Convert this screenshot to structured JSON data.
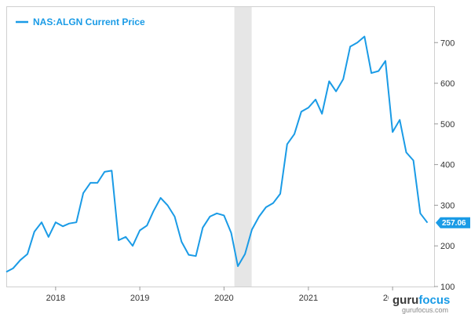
{
  "chart_data": {
    "type": "line",
    "title": "",
    "xlabel": "",
    "ylabel": "",
    "legend": {
      "label": "NAS:ALGN Current Price",
      "position": "top-left"
    },
    "current_price_label": "257.06",
    "grid": false,
    "x_tick_labels": [
      "2018",
      "2019",
      "2020",
      "2021",
      "2022"
    ],
    "y_tick_labels": [
      "100",
      "200",
      "300",
      "400",
      "500",
      "600",
      "700"
    ],
    "xlim": [
      "2017-06-01",
      "2022-06-30"
    ],
    "ylim": [
      100,
      770
    ],
    "shaded_region": {
      "start": "2020-02-15",
      "end": "2020-04-30"
    },
    "series": [
      {
        "name": "NAS:ALGN Current Price",
        "color": "#1a9be6",
        "points": [
          [
            "2017-06-01",
            136
          ],
          [
            "2017-07-01",
            145
          ],
          [
            "2017-08-01",
            165
          ],
          [
            "2017-09-01",
            180
          ],
          [
            "2017-10-01",
            235
          ],
          [
            "2017-11-01",
            258
          ],
          [
            "2017-12-01",
            222
          ],
          [
            "2018-01-01",
            258
          ],
          [
            "2018-02-01",
            248
          ],
          [
            "2018-03-01",
            255
          ],
          [
            "2018-04-01",
            258
          ],
          [
            "2018-05-01",
            330
          ],
          [
            "2018-06-01",
            355
          ],
          [
            "2018-07-01",
            355
          ],
          [
            "2018-08-01",
            382
          ],
          [
            "2018-09-01",
            385
          ],
          [
            "2018-10-01",
            214
          ],
          [
            "2018-11-01",
            222
          ],
          [
            "2018-12-01",
            200
          ],
          [
            "2019-01-01",
            238
          ],
          [
            "2019-02-01",
            250
          ],
          [
            "2019-03-01",
            285
          ],
          [
            "2019-04-01",
            318
          ],
          [
            "2019-05-01",
            300
          ],
          [
            "2019-06-01",
            272
          ],
          [
            "2019-07-01",
            210
          ],
          [
            "2019-08-01",
            178
          ],
          [
            "2019-09-01",
            175
          ],
          [
            "2019-10-01",
            245
          ],
          [
            "2019-11-01",
            272
          ],
          [
            "2019-12-01",
            280
          ],
          [
            "2020-01-01",
            275
          ],
          [
            "2020-02-01",
            232
          ],
          [
            "2020-03-01",
            150
          ],
          [
            "2020-04-01",
            180
          ],
          [
            "2020-05-01",
            240
          ],
          [
            "2020-06-01",
            272
          ],
          [
            "2020-07-01",
            295
          ],
          [
            "2020-08-01",
            305
          ],
          [
            "2020-09-01",
            328
          ],
          [
            "2020-10-01",
            450
          ],
          [
            "2020-11-01",
            475
          ],
          [
            "2020-12-01",
            530
          ],
          [
            "2021-01-01",
            540
          ],
          [
            "2021-02-01",
            560
          ],
          [
            "2021-03-01",
            525
          ],
          [
            "2021-04-01",
            605
          ],
          [
            "2021-05-01",
            580
          ],
          [
            "2021-06-01",
            610
          ],
          [
            "2021-07-01",
            690
          ],
          [
            "2021-08-01",
            700
          ],
          [
            "2021-09-01",
            715
          ],
          [
            "2021-10-01",
            625
          ],
          [
            "2021-11-01",
            630
          ],
          [
            "2021-12-01",
            655
          ],
          [
            "2022-01-01",
            480
          ],
          [
            "2022-02-01",
            510
          ],
          [
            "2022-03-01",
            430
          ],
          [
            "2022-04-01",
            410
          ],
          [
            "2022-05-01",
            280
          ],
          [
            "2022-06-01",
            257
          ]
        ]
      }
    ]
  },
  "watermark": {
    "brand_prefix": "guru",
    "brand_suffix": "focus",
    "url": "gurufocus.com"
  }
}
